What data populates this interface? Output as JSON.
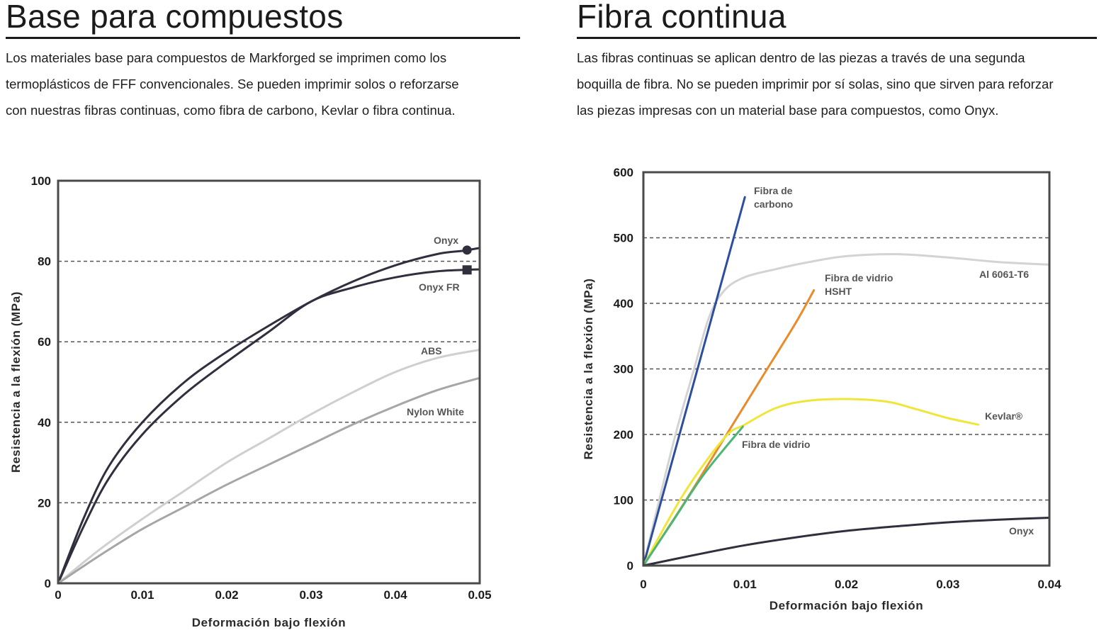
{
  "left": {
    "title": "Base para compuestos",
    "text": "Los materiales base para compuestos de Markforged se imprimen como los\ntermoplásticos de FFF convencionales. Se pueden imprimir solos o reforzarse\ncon nuestras fibras continuas, como fibra de carbono, Kevlar o fibra continua."
  },
  "right": {
    "title": "Fibra continua",
    "text": "Las fibras continuas se aplican dentro de las piezas a través de una segunda\nboquilla de fibra. No se pueden imprimir por sí solas, sino que sirven para reforzar\nlas piezas impresas con un material base para compuestos, como Onyx."
  },
  "chart_data": [
    {
      "type": "line",
      "xlabel": "Deformación bajo flexión",
      "ylabel": "Resistencia a la flexión (MPa)",
      "xlim": [
        0,
        0.05
      ],
      "ylim": [
        0,
        100
      ],
      "xticks": [
        0,
        0.01,
        0.02,
        0.03,
        0.04,
        0.05
      ],
      "xtick_labels": [
        "0",
        "0.01",
        "0.02",
        "0.03",
        "0.04",
        "0.05"
      ],
      "yticks": [
        0,
        20,
        40,
        60,
        80,
        100
      ],
      "ytick_labels": [
        "0",
        "20",
        "40",
        "60",
        "80",
        "100"
      ],
      "grid": "dashed horizontal",
      "series": [
        {
          "name": "Onyx",
          "color": "#2f2f3e",
          "marker": "circle",
          "marker_at": 0.0485,
          "points": [
            [
              0,
              0
            ],
            [
              0.003,
              16
            ],
            [
              0.006,
              29
            ],
            [
              0.01,
              40
            ],
            [
              0.015,
              50
            ],
            [
              0.02,
              57.5
            ],
            [
              0.025,
              64
            ],
            [
              0.03,
              70
            ],
            [
              0.035,
              75
            ],
            [
              0.04,
              79
            ],
            [
              0.045,
              81.8
            ],
            [
              0.048,
              82.6
            ],
            [
              0.05,
              83.3
            ]
          ]
        },
        {
          "name": "Onyx FR",
          "color": "#2f2f3e",
          "marker": "square",
          "marker_at": 0.0485,
          "points": [
            [
              0,
              0
            ],
            [
              0.003,
              14
            ],
            [
              0.006,
              26
            ],
            [
              0.01,
              37
            ],
            [
              0.015,
              47
            ],
            [
              0.02,
              55
            ],
            [
              0.025,
              62.5
            ],
            [
              0.03,
              70
            ],
            [
              0.035,
              73.5
            ],
            [
              0.04,
              76
            ],
            [
              0.045,
              77.5
            ],
            [
              0.05,
              78
            ]
          ]
        },
        {
          "name": "ABS",
          "color": "#cfcfcf",
          "points": [
            [
              0,
              0
            ],
            [
              0.005,
              8.5
            ],
            [
              0.01,
              16
            ],
            [
              0.015,
              23
            ],
            [
              0.02,
              30
            ],
            [
              0.025,
              36
            ],
            [
              0.03,
              42
            ],
            [
              0.035,
              47.5
            ],
            [
              0.04,
              52.5
            ],
            [
              0.045,
              56
            ],
            [
              0.05,
              58
            ]
          ]
        },
        {
          "name": "Nylon White",
          "color": "#a6a6a6",
          "points": [
            [
              0,
              0
            ],
            [
              0.005,
              7
            ],
            [
              0.01,
              13.5
            ],
            [
              0.015,
              19
            ],
            [
              0.02,
              24.5
            ],
            [
              0.025,
              29.5
            ],
            [
              0.03,
              34.5
            ],
            [
              0.035,
              39.5
            ],
            [
              0.04,
              44
            ],
            [
              0.045,
              48
            ],
            [
              0.05,
              51
            ]
          ]
        }
      ]
    },
    {
      "type": "line",
      "xlabel": "Deformación bajo flexión",
      "ylabel": "Resistencia a la flexión (MPa)",
      "xlim": [
        0,
        0.04
      ],
      "ylim": [
        0,
        600
      ],
      "xticks": [
        0,
        0.01,
        0.02,
        0.03,
        0.04
      ],
      "xtick_labels": [
        "0",
        "0.01",
        "0.02",
        "0.03",
        "0.04"
      ],
      "yticks": [
        0,
        100,
        200,
        300,
        400,
        500,
        600
      ],
      "ytick_labels": [
        "0",
        "100",
        "200",
        "300",
        "400",
        "500",
        "600"
      ],
      "grid": "dashed horizontal",
      "series": [
        {
          "name": "Al 6061-T6",
          "color": "#d3d3d3",
          "points": [
            [
              0,
              0
            ],
            [
              0.003,
              190
            ],
            [
              0.005,
              300
            ],
            [
              0.0065,
              380
            ],
            [
              0.008,
              420
            ],
            [
              0.01,
              440
            ],
            [
              0.013,
              452
            ],
            [
              0.016,
              462
            ],
            [
              0.02,
              472
            ],
            [
              0.025,
              475
            ],
            [
              0.03,
              470
            ],
            [
              0.035,
              463
            ],
            [
              0.04,
              459
            ]
          ]
        },
        {
          "name": "Fibra de\ncarbono",
          "color": "#2b4ea0",
          "points": [
            [
              0,
              0
            ],
            [
              0.01,
              562
            ]
          ]
        },
        {
          "name": "Fibra de vidrio\nHSHT",
          "color": "#ea8a2a",
          "points": [
            [
              0,
              0
            ],
            [
              0.004,
              95
            ],
            [
              0.008,
              195
            ],
            [
              0.012,
              295
            ],
            [
              0.015,
              370
            ],
            [
              0.0168,
              420
            ]
          ]
        },
        {
          "name": "Kevlar®",
          "color": "#f0e53a",
          "points": [
            [
              0,
              0
            ],
            [
              0.004,
              110
            ],
            [
              0.008,
              195
            ],
            [
              0.01,
              215
            ],
            [
              0.013,
              240
            ],
            [
              0.016,
              251
            ],
            [
              0.02,
              254
            ],
            [
              0.024,
              250
            ],
            [
              0.027,
              238
            ],
            [
              0.03,
              225
            ],
            [
              0.033,
              215
            ]
          ]
        },
        {
          "name": "Fibra de vidrio",
          "color": "#4cb774",
          "points": [
            [
              0,
              0
            ],
            [
              0.003,
              70
            ],
            [
              0.006,
              140
            ],
            [
              0.0098,
              212
            ]
          ]
        },
        {
          "name": "Onyx",
          "color": "#2f2f3e",
          "points": [
            [
              0,
              0
            ],
            [
              0.005,
              16
            ],
            [
              0.01,
              31
            ],
            [
              0.015,
              43
            ],
            [
              0.02,
              53
            ],
            [
              0.025,
              60
            ],
            [
              0.03,
              66
            ],
            [
              0.035,
              70
            ],
            [
              0.04,
              73
            ]
          ]
        }
      ]
    }
  ]
}
